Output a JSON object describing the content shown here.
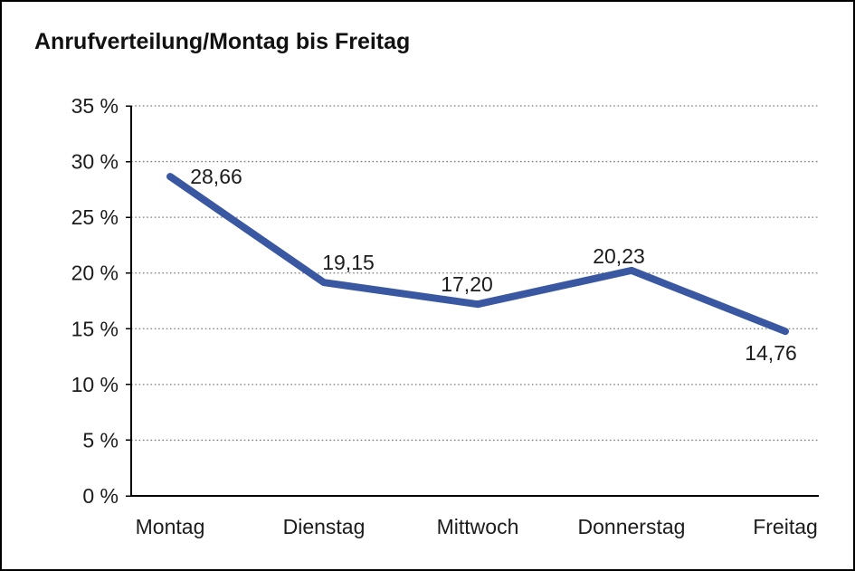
{
  "chart_data": {
    "type": "line",
    "title": "Anrufverteilung/Montag bis Freitag",
    "categories": [
      "Montag",
      "Dienstag",
      "Mittwoch",
      "Donnerstag",
      "Freitag"
    ],
    "values": [
      28.66,
      19.15,
      17.2,
      20.23,
      14.76
    ],
    "value_labels": [
      "28,66",
      "19,15",
      "17,20",
      "20,23",
      "14,76"
    ],
    "xlabel": "",
    "ylabel": "",
    "ylim": [
      0,
      35
    ],
    "y_ticks": [
      0,
      5,
      10,
      15,
      20,
      25,
      30,
      35
    ],
    "y_tick_labels": [
      "0 %",
      "5 %",
      "10 %",
      "15 %",
      "20 %",
      "25 %",
      "30 %",
      "35 %"
    ],
    "grid": "horizontal-dotted",
    "legend": "none",
    "line_color": "#3a57a2",
    "grid_color": "#7b7b7b",
    "axis_color": "#000000",
    "text_color": "#1c1c1c",
    "decimal_separator": ","
  }
}
